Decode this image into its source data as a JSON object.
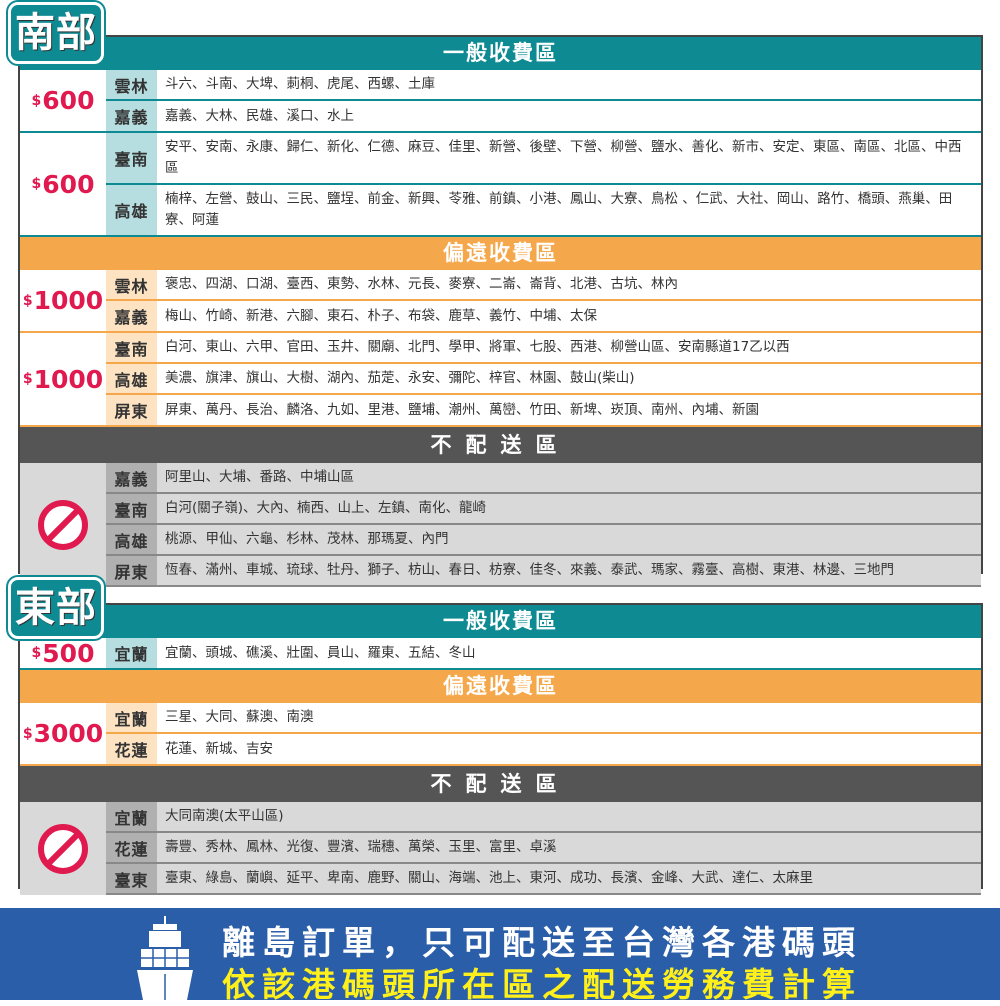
{
  "sections": [
    {
      "id": "south",
      "label": "南部",
      "blocks": [
        {
          "type": "general",
          "title": "一般收費區",
          "groups": [
            {
              "price": "600",
              "currency": "$",
              "rows": [
                {
                  "region": "雲林",
                  "towns": "斗六、斗南、大埤、莿桐、虎尾、西螺、土庫"
                },
                {
                  "region": "嘉義",
                  "towns": "嘉義、大林、民雄、溪口、水上"
                }
              ]
            },
            {
              "price": "600",
              "currency": "$",
              "rows": [
                {
                  "region": "臺南",
                  "towns": "安平、安南、永康、歸仁、新化、仁德、麻豆、佳里、新營、後壁、下營、柳營、鹽水、善化、新市、安定、東區、南區、北區、中西區"
                },
                {
                  "region": "高雄",
                  "towns": "楠梓、左營、鼓山、三民、鹽埕、前金、新興、苓雅、前鎮、小港、鳳山、大寮、鳥松 、仁武、大社、岡山、路竹、橋頭、燕巢、田寮、阿蓮"
                }
              ]
            }
          ]
        },
        {
          "type": "remote",
          "title": "偏遠收費區",
          "groups": [
            {
              "price": "1000",
              "currency": "$",
              "rows": [
                {
                  "region": "雲林",
                  "towns": "褒忠、四湖、口湖、臺西、東勢、水林、元長、麥寮、二崙、崙背、北港、古坑、林內"
                },
                {
                  "region": "嘉義",
                  "towns": "梅山、竹崎、新港、六腳、東石、朴子、布袋、鹿草、義竹、中埔、太保"
                }
              ]
            },
            {
              "price": "1000",
              "currency": "$",
              "rows": [
                {
                  "region": "臺南",
                  "towns": "白河、東山、六甲、官田、玉井、關廟、北門、學甲、將軍、七股、西港、柳營山區、安南縣道17乙以西"
                },
                {
                  "region": "高雄",
                  "towns": "美濃、旗津、旗山、大樹、湖內、茄萣、永安、彌陀、梓官、林園、鼓山(柴山)"
                },
                {
                  "region": "屏東",
                  "towns": "屏東、萬丹、長治、麟洛、九如、里港、鹽埔、潮州、萬巒、竹田、新埤、崁頂、南州、內埔、新園"
                }
              ]
            }
          ]
        },
        {
          "type": "none",
          "title": "不配送區",
          "groups": [
            {
              "icon": "prohibited-icon",
              "rows": [
                {
                  "region": "嘉義",
                  "towns": "阿里山、大埔、番路、中埔山區"
                },
                {
                  "region": "臺南",
                  "towns": "白河(關子嶺)、大內、楠西、山上、左鎮、南化、龍崎"
                },
                {
                  "region": "高雄",
                  "towns": "桃源、甲仙、六龜、杉林、茂林、那瑪夏、內門"
                },
                {
                  "region": "屏東",
                  "towns": "恆春、滿州、車城、琉球、牡丹、獅子、枋山、春日、枋寮、佳冬、來義、泰武、瑪家、霧臺、高樹、東港、林邊、三地門"
                }
              ]
            }
          ]
        }
      ]
    },
    {
      "id": "east",
      "label": "東部",
      "blocks": [
        {
          "type": "general",
          "title": "一般收費區",
          "groups": [
            {
              "price": "500",
              "currency": "$",
              "rows": [
                {
                  "region": "宜蘭",
                  "towns": "宜蘭、頭城、礁溪、壯圍、員山、羅東、五結、冬山"
                }
              ]
            }
          ]
        },
        {
          "type": "remote",
          "title": "偏遠收費區",
          "groups": [
            {
              "price": "3000",
              "currency": "$",
              "rows": [
                {
                  "region": "宜蘭",
                  "towns": "三星、大同、蘇澳、南澳"
                },
                {
                  "region": "花蓮",
                  "towns": "花蓮、新城、吉安"
                }
              ]
            }
          ]
        },
        {
          "type": "none",
          "title": "不配送區",
          "groups": [
            {
              "icon": "prohibited-icon",
              "rows": [
                {
                  "region": "宜蘭",
                  "towns": "大同南澳(太平山區)"
                },
                {
                  "region": "花蓮",
                  "towns": "壽豐、秀林、鳳林、光復、豐濱、瑞穗、萬榮、玉里、富里、卓溪"
                },
                {
                  "region": "臺東",
                  "towns": "臺東、綠島、蘭嶼、延平、卑南、鹿野、關山、海端、池上、東河、成功、長濱、金峰、大武、達仁、太麻里"
                }
              ]
            }
          ]
        }
      ]
    }
  ],
  "banner": {
    "line1": "離島訂單，只可配送至台灣各港碼頭",
    "line2": "依該港碼頭所在區之配送勞務費計算",
    "icon": "ship-icon"
  },
  "colors": {
    "general": "#0e8a93",
    "remote": "#f5a84b",
    "none": "#555555",
    "price": "#e0194f",
    "banner": "#2a5ea8",
    "banner_highlight": "#ffef1a"
  }
}
